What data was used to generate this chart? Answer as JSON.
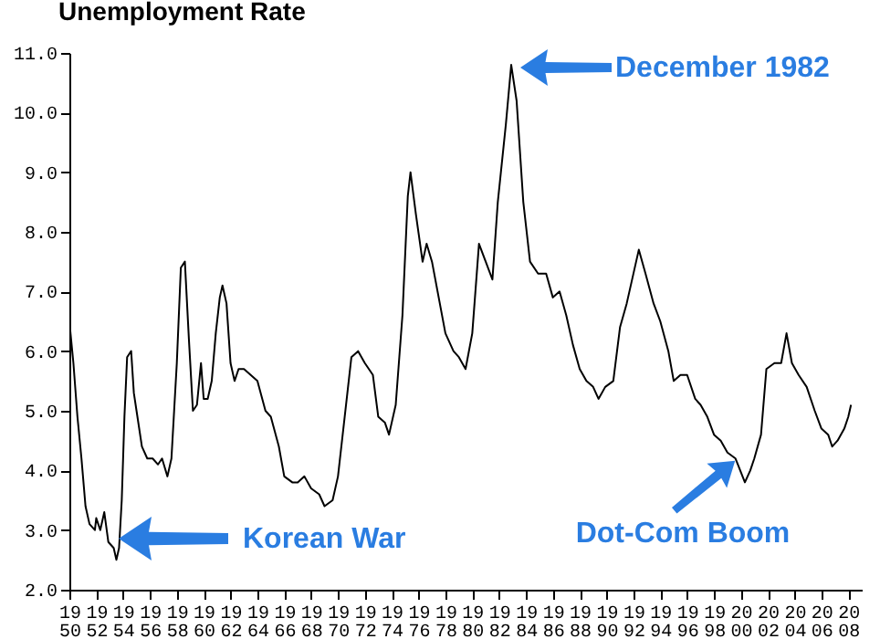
{
  "chart_data": {
    "type": "line",
    "title": "Unemployment Rate",
    "x": [
      1950.0,
      1950.3,
      1950.6,
      1950.9,
      1951.2,
      1951.5,
      1951.9,
      1952.0,
      1952.3,
      1952.6,
      1952.9,
      1953.3,
      1953.5,
      1953.7,
      1953.9,
      1954.1,
      1954.3,
      1954.6,
      1954.8,
      1955.0,
      1955.4,
      1955.8,
      1956.2,
      1956.6,
      1956.9,
      1957.3,
      1957.6,
      1957.8,
      1958.0,
      1958.3,
      1958.6,
      1958.9,
      1959.2,
      1959.5,
      1959.8,
      1960.0,
      1960.3,
      1960.6,
      1960.9,
      1961.2,
      1961.4,
      1961.7,
      1962.0,
      1962.3,
      1962.6,
      1963.0,
      1963.5,
      1964.0,
      1964.6,
      1965.0,
      1965.6,
      1966.0,
      1966.6,
      1967.0,
      1967.5,
      1968.0,
      1968.6,
      1969.0,
      1969.6,
      1970.0,
      1970.5,
      1971.0,
      1971.5,
      1972.0,
      1972.6,
      1973.0,
      1973.5,
      1973.8,
      1974.3,
      1974.8,
      1975.2,
      1975.4,
      1975.8,
      1976.3,
      1976.6,
      1977.0,
      1977.5,
      1978.0,
      1978.6,
      1979.0,
      1979.5,
      1980.0,
      1980.5,
      1981.0,
      1981.5,
      1981.9,
      1982.5,
      1982.9,
      1983.3,
      1983.8,
      1984.3,
      1984.9,
      1985.5,
      1986.0,
      1986.5,
      1987.0,
      1987.5,
      1988.0,
      1988.5,
      1989.0,
      1989.4,
      1989.9,
      1990.5,
      1991.0,
      1991.5,
      1992.4,
      1992.9,
      1993.5,
      1994.0,
      1994.6,
      1995.0,
      1995.5,
      1996.0,
      1996.6,
      1997.0,
      1997.5,
      1998.0,
      1998.5,
      1999.0,
      1999.6,
      2000.3,
      2000.7,
      2001.0,
      2001.5,
      2001.9,
      2002.5,
      2003.0,
      2003.4,
      2003.8,
      2004.3,
      2004.9,
      2005.5,
      2006.0,
      2006.5,
      2006.8,
      2007.2,
      2007.7,
      2008.0,
      2008.2
    ],
    "values": [
      6.5,
      5.8,
      4.9,
      4.2,
      3.4,
      3.1,
      3.0,
      3.2,
      3.0,
      3.3,
      2.8,
      2.7,
      2.5,
      2.7,
      3.5,
      4.9,
      5.9,
      6.0,
      5.3,
      5.0,
      4.4,
      4.2,
      4.2,
      4.1,
      4.2,
      3.9,
      4.2,
      5.0,
      5.8,
      7.4,
      7.5,
      6.2,
      5.0,
      5.1,
      5.8,
      5.2,
      5.2,
      5.5,
      6.3,
      6.9,
      7.1,
      6.8,
      5.8,
      5.5,
      5.7,
      5.7,
      5.6,
      5.5,
      5.0,
      4.9,
      4.4,
      3.9,
      3.8,
      3.8,
      3.9,
      3.7,
      3.6,
      3.4,
      3.5,
      3.9,
      4.9,
      5.9,
      6.0,
      5.8,
      5.6,
      4.9,
      4.8,
      4.6,
      5.1,
      6.6,
      8.6,
      9.0,
      8.3,
      7.5,
      7.8,
      7.5,
      6.9,
      6.3,
      6.0,
      5.9,
      5.7,
      6.3,
      7.8,
      7.5,
      7.2,
      8.5,
      9.8,
      10.8,
      10.2,
      8.5,
      7.5,
      7.3,
      7.3,
      6.9,
      7.0,
      6.6,
      6.1,
      5.7,
      5.5,
      5.4,
      5.2,
      5.4,
      5.5,
      6.4,
      6.8,
      7.7,
      7.3,
      6.8,
      6.5,
      6.0,
      5.5,
      5.6,
      5.6,
      5.2,
      5.1,
      4.9,
      4.6,
      4.5,
      4.3,
      4.2,
      3.8,
      4.0,
      4.2,
      4.6,
      5.7,
      5.8,
      5.8,
      6.3,
      5.8,
      5.6,
      5.4,
      5.0,
      4.7,
      4.6,
      4.4,
      4.5,
      4.7,
      4.9,
      5.1
    ],
    "color": "#000000",
    "xlim": [
      1950,
      2009
    ],
    "xticks": [
      1950,
      1952,
      1954,
      1956,
      1958,
      1960,
      1962,
      1964,
      1966,
      1968,
      1970,
      1972,
      1974,
      1976,
      1978,
      1980,
      1982,
      1984,
      1986,
      1988,
      1990,
      1992,
      1994,
      1996,
      1998,
      2000,
      2002,
      2004,
      2006,
      2008
    ],
    "ylim": [
      2,
      11
    ],
    "yticks": [
      {
        "value": 2,
        "label": "2.0"
      },
      {
        "value": 3,
        "label": "3.0"
      },
      {
        "value": 4,
        "label": "4.0"
      },
      {
        "value": 5,
        "label": "5.0"
      },
      {
        "value": 6,
        "label": "6.0"
      },
      {
        "value": 7,
        "label": "7.0"
      },
      {
        "value": 8,
        "label": "8.0"
      },
      {
        "value": 9,
        "label": "9.0"
      },
      {
        "value": 10,
        "label": "10.0"
      },
      {
        "value": 11,
        "label": "11.0"
      }
    ],
    "annotations": [
      "December 1982",
      "Korean War",
      "Dot-Com Boom"
    ]
  }
}
